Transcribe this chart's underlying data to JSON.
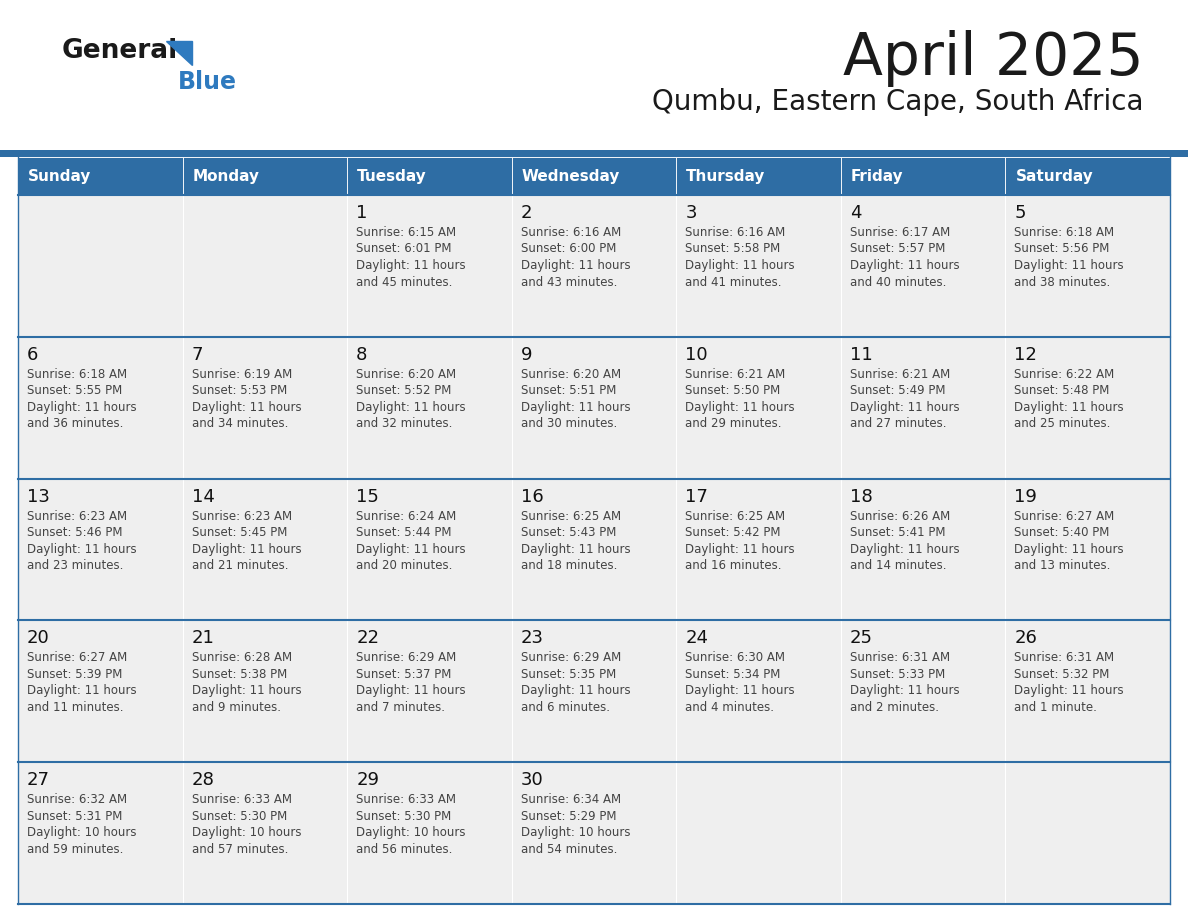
{
  "title": "April 2025",
  "subtitle": "Qumbu, Eastern Cape, South Africa",
  "header_bg_color": "#2E6DA4",
  "header_text_color": "#FFFFFF",
  "cell_bg_color": "#EFEFEF",
  "grid_line_color": "#2E6DA4",
  "title_color": "#1a1a1a",
  "subtitle_color": "#1a1a1a",
  "cell_text_color": "#444444",
  "day_number_color": "#111111",
  "logo_black_color": "#1a1a1a",
  "logo_blue_color": "#2E7ABF",
  "day_names": [
    "Sunday",
    "Monday",
    "Tuesday",
    "Wednesday",
    "Thursday",
    "Friday",
    "Saturday"
  ],
  "calendar": [
    [
      null,
      null,
      {
        "day": "1",
        "sunrise": "6:15 AM",
        "sunset": "6:01 PM",
        "daylight_h": "11 hours",
        "daylight_m": "45 minutes."
      },
      {
        "day": "2",
        "sunrise": "6:16 AM",
        "sunset": "6:00 PM",
        "daylight_h": "11 hours",
        "daylight_m": "43 minutes."
      },
      {
        "day": "3",
        "sunrise": "6:16 AM",
        "sunset": "5:58 PM",
        "daylight_h": "11 hours",
        "daylight_m": "41 minutes."
      },
      {
        "day": "4",
        "sunrise": "6:17 AM",
        "sunset": "5:57 PM",
        "daylight_h": "11 hours",
        "daylight_m": "40 minutes."
      },
      {
        "day": "5",
        "sunrise": "6:18 AM",
        "sunset": "5:56 PM",
        "daylight_h": "11 hours",
        "daylight_m": "38 minutes."
      }
    ],
    [
      {
        "day": "6",
        "sunrise": "6:18 AM",
        "sunset": "5:55 PM",
        "daylight_h": "11 hours",
        "daylight_m": "36 minutes."
      },
      {
        "day": "7",
        "sunrise": "6:19 AM",
        "sunset": "5:53 PM",
        "daylight_h": "11 hours",
        "daylight_m": "34 minutes."
      },
      {
        "day": "8",
        "sunrise": "6:20 AM",
        "sunset": "5:52 PM",
        "daylight_h": "11 hours",
        "daylight_m": "32 minutes."
      },
      {
        "day": "9",
        "sunrise": "6:20 AM",
        "sunset": "5:51 PM",
        "daylight_h": "11 hours",
        "daylight_m": "30 minutes."
      },
      {
        "day": "10",
        "sunrise": "6:21 AM",
        "sunset": "5:50 PM",
        "daylight_h": "11 hours",
        "daylight_m": "29 minutes."
      },
      {
        "day": "11",
        "sunrise": "6:21 AM",
        "sunset": "5:49 PM",
        "daylight_h": "11 hours",
        "daylight_m": "27 minutes."
      },
      {
        "day": "12",
        "sunrise": "6:22 AM",
        "sunset": "5:48 PM",
        "daylight_h": "11 hours",
        "daylight_m": "25 minutes."
      }
    ],
    [
      {
        "day": "13",
        "sunrise": "6:23 AM",
        "sunset": "5:46 PM",
        "daylight_h": "11 hours",
        "daylight_m": "23 minutes."
      },
      {
        "day": "14",
        "sunrise": "6:23 AM",
        "sunset": "5:45 PM",
        "daylight_h": "11 hours",
        "daylight_m": "21 minutes."
      },
      {
        "day": "15",
        "sunrise": "6:24 AM",
        "sunset": "5:44 PM",
        "daylight_h": "11 hours",
        "daylight_m": "20 minutes."
      },
      {
        "day": "16",
        "sunrise": "6:25 AM",
        "sunset": "5:43 PM",
        "daylight_h": "11 hours",
        "daylight_m": "18 minutes."
      },
      {
        "day": "17",
        "sunrise": "6:25 AM",
        "sunset": "5:42 PM",
        "daylight_h": "11 hours",
        "daylight_m": "16 minutes."
      },
      {
        "day": "18",
        "sunrise": "6:26 AM",
        "sunset": "5:41 PM",
        "daylight_h": "11 hours",
        "daylight_m": "14 minutes."
      },
      {
        "day": "19",
        "sunrise": "6:27 AM",
        "sunset": "5:40 PM",
        "daylight_h": "11 hours",
        "daylight_m": "13 minutes."
      }
    ],
    [
      {
        "day": "20",
        "sunrise": "6:27 AM",
        "sunset": "5:39 PM",
        "daylight_h": "11 hours",
        "daylight_m": "11 minutes."
      },
      {
        "day": "21",
        "sunrise": "6:28 AM",
        "sunset": "5:38 PM",
        "daylight_h": "11 hours",
        "daylight_m": "9 minutes."
      },
      {
        "day": "22",
        "sunrise": "6:29 AM",
        "sunset": "5:37 PM",
        "daylight_h": "11 hours",
        "daylight_m": "7 minutes."
      },
      {
        "day": "23",
        "sunrise": "6:29 AM",
        "sunset": "5:35 PM",
        "daylight_h": "11 hours",
        "daylight_m": "6 minutes."
      },
      {
        "day": "24",
        "sunrise": "6:30 AM",
        "sunset": "5:34 PM",
        "daylight_h": "11 hours",
        "daylight_m": "4 minutes."
      },
      {
        "day": "25",
        "sunrise": "6:31 AM",
        "sunset": "5:33 PM",
        "daylight_h": "11 hours",
        "daylight_m": "2 minutes."
      },
      {
        "day": "26",
        "sunrise": "6:31 AM",
        "sunset": "5:32 PM",
        "daylight_h": "11 hours",
        "daylight_m": "1 minute."
      }
    ],
    [
      {
        "day": "27",
        "sunrise": "6:32 AM",
        "sunset": "5:31 PM",
        "daylight_h": "10 hours",
        "daylight_m": "59 minutes."
      },
      {
        "day": "28",
        "sunrise": "6:33 AM",
        "sunset": "5:30 PM",
        "daylight_h": "10 hours",
        "daylight_m": "57 minutes."
      },
      {
        "day": "29",
        "sunrise": "6:33 AM",
        "sunset": "5:30 PM",
        "daylight_h": "10 hours",
        "daylight_m": "56 minutes."
      },
      {
        "day": "30",
        "sunrise": "6:34 AM",
        "sunset": "5:29 PM",
        "daylight_h": "10 hours",
        "daylight_m": "54 minutes."
      },
      null,
      null,
      null
    ]
  ]
}
